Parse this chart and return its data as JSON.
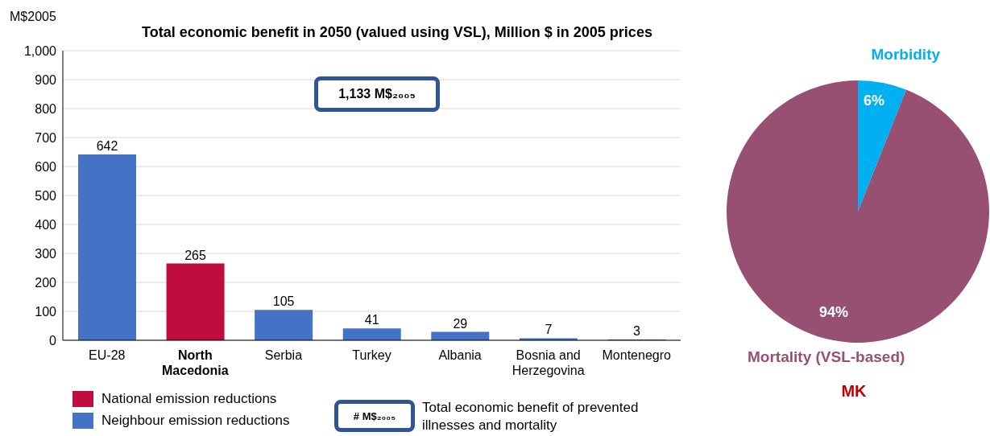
{
  "chart_data": [
    {
      "type": "bar",
      "title": "Total economic benefit in 2050 (valued using VSL), Million $ in 2005 prices",
      "ylabel": "M$2005",
      "categories": [
        "EU-28",
        "North Macedonia",
        "Serbia",
        "Turkey",
        "Albania",
        "Bosnia and Herzegovina",
        "Montenegro"
      ],
      "series": [
        {
          "name": "National emission reductions",
          "color": "#c00d3e",
          "values": [
            null,
            265,
            null,
            null,
            null,
            null,
            null
          ]
        },
        {
          "name": "Neighbour emission reductions",
          "color": "#4472c4",
          "values": [
            642,
            null,
            105,
            41,
            29,
            7,
            3
          ]
        }
      ],
      "stacked": true,
      "data_labels": true,
      "ylim": [
        0,
        1000
      ],
      "yticks": [
        0,
        100,
        200,
        300,
        400,
        500,
        600,
        700,
        800,
        900,
        {
          "value": 1000,
          "label": "1,000"
        }
      ],
      "grid": "y",
      "legend": "bottom",
      "annotations": [
        "1,133 M$₂₀₀₅",
        "# M$₂₀₀₅",
        "Total economic benefit of prevented illnesses and mortality"
      ]
    },
    {
      "type": "pie",
      "title": "MK",
      "categories": [
        "Morbidity",
        "Mortality (VSL-based)"
      ],
      "values": [
        6,
        94
      ],
      "colors": [
        "#00b0f0",
        "#974f72"
      ],
      "value_labels": [
        "6%",
        "94%"
      ]
    }
  ]
}
